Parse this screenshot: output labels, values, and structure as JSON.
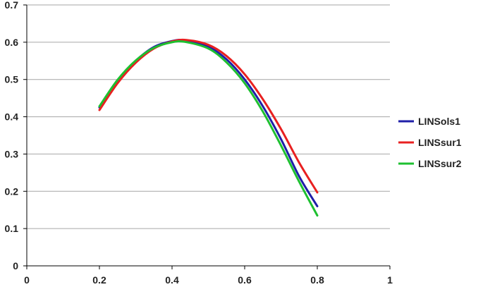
{
  "chart_data": {
    "type": "line",
    "xlim": [
      0,
      1
    ],
    "ylim": [
      0,
      0.7
    ],
    "xticks": [
      "0",
      "0.2",
      "0.4",
      "0.6",
      "0.8",
      "1"
    ],
    "yticks": [
      "0",
      "0.1",
      "0.2",
      "0.3",
      "0.4",
      "0.5",
      "0.6",
      "0.7"
    ],
    "grid": "horizontal",
    "legend_position": "right",
    "series": [
      {
        "name": "LINSols1",
        "color": "#1f1fa8",
        "x": [
          0.2,
          0.25,
          0.3,
          0.35,
          0.4,
          0.435,
          0.5,
          0.55,
          0.6,
          0.65,
          0.7,
          0.75,
          0.8
        ],
        "y": [
          0.425,
          0.497,
          0.55,
          0.587,
          0.603,
          0.605,
          0.588,
          0.554,
          0.5,
          0.428,
          0.34,
          0.24,
          0.16
        ]
      },
      {
        "name": "LINSsur1",
        "color": "#e82020",
        "x": [
          0.2,
          0.25,
          0.3,
          0.35,
          0.4,
          0.44,
          0.5,
          0.55,
          0.6,
          0.65,
          0.7,
          0.75,
          0.8
        ],
        "y": [
          0.418,
          0.49,
          0.545,
          0.583,
          0.602,
          0.606,
          0.593,
          0.563,
          0.514,
          0.447,
          0.367,
          0.277,
          0.197
        ]
      },
      {
        "name": "LINSsur2",
        "color": "#1ec030",
        "x": [
          0.2,
          0.25,
          0.3,
          0.35,
          0.4,
          0.435,
          0.5,
          0.55,
          0.6,
          0.65,
          0.7,
          0.75,
          0.8
        ],
        "y": [
          0.428,
          0.499,
          0.551,
          0.585,
          0.6,
          0.601,
          0.583,
          0.546,
          0.49,
          0.414,
          0.323,
          0.226,
          0.135
        ]
      }
    ]
  }
}
